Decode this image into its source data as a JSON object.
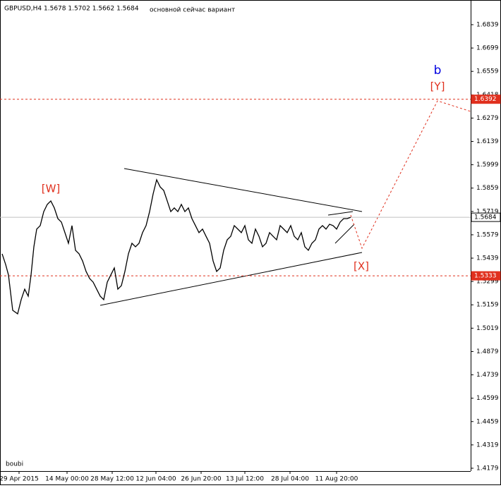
{
  "chart_data": {
    "type": "line",
    "title": "GBPUSD,H4  1.5678 1.5702 1.5662 1.5684",
    "subtitle": "основной сейчас вариант",
    "footer": "boubi",
    "annotations": {
      "w": "[W]",
      "x": "[X]",
      "y": "[Y]",
      "b": "b"
    },
    "series": [
      {
        "name": "GBPUSD",
        "color": "#000000",
        "x": [
          3,
          8,
          12,
          18,
          25,
          30,
          35,
          40,
          44,
          48,
          52,
          57,
          62,
          67,
          72,
          77,
          82,
          87,
          92,
          97,
          102,
          107,
          112,
          117,
          122,
          127,
          132,
          137,
          142,
          147,
          152,
          157,
          162,
          167,
          172,
          177,
          182,
          187,
          192,
          197,
          202,
          207,
          212,
          217,
          222,
          227,
          232,
          237,
          242,
          247,
          252,
          257,
          262,
          267,
          272,
          277,
          282,
          287,
          292,
          297,
          302,
          307,
          312,
          317,
          322,
          327,
          332,
          337,
          342,
          347,
          352,
          357,
          362,
          367,
          372,
          377,
          382,
          387,
          392,
          397,
          402,
          407,
          412,
          417,
          422,
          427,
          432,
          437,
          442,
          447,
          452,
          457,
          462,
          467,
          472,
          477,
          482,
          487,
          492,
          497
        ],
        "values": [
          1.5465,
          1.5401,
          1.5338,
          1.5126,
          1.5105,
          1.519,
          1.5253,
          1.5211,
          1.5338,
          1.5507,
          1.5613,
          1.5634,
          1.5718,
          1.5761,
          1.5782,
          1.574,
          1.5676,
          1.5655,
          1.5592,
          1.5528,
          1.5634,
          1.5486,
          1.5465,
          1.5422,
          1.5359,
          1.5317,
          1.5295,
          1.5253,
          1.5211,
          1.519,
          1.5295,
          1.5338,
          1.538,
          1.5253,
          1.5274,
          1.5359,
          1.5465,
          1.5528,
          1.5507,
          1.5528,
          1.5592,
          1.5634,
          1.5718,
          1.5824,
          1.5909,
          1.5866,
          1.5845,
          1.5782,
          1.5718,
          1.574,
          1.5718,
          1.5761,
          1.5718,
          1.574,
          1.5676,
          1.5634,
          1.5592,
          1.5613,
          1.557,
          1.5528,
          1.5422,
          1.5359,
          1.538,
          1.5486,
          1.5549,
          1.557,
          1.5634,
          1.5613,
          1.5592,
          1.5634,
          1.5549,
          1.5528,
          1.5613,
          1.557,
          1.5507,
          1.5528,
          1.5592,
          1.557,
          1.5549,
          1.5634,
          1.5613,
          1.5592,
          1.5634,
          1.557,
          1.5549,
          1.5592,
          1.5507,
          1.5486,
          1.5528,
          1.5549,
          1.5613,
          1.5634,
          1.5613,
          1.5642,
          1.5634,
          1.5613,
          1.5655,
          1.5676,
          1.5676,
          1.5684
        ]
      }
    ],
    "xlim": [
      0,
      667
    ],
    "xticks": [
      {
        "value": 27,
        "label": "29 Apr 2015"
      },
      {
        "value": 95,
        "label": "14 May 00:00"
      },
      {
        "value": 159,
        "label": "28 May 12:00"
      },
      {
        "value": 221,
        "label": "12 Jun 04:00"
      },
      {
        "value": 285,
        "label": "26 Jun 20:00"
      },
      {
        "value": 347,
        "label": "13 Jul 12:00"
      },
      {
        "value": 411,
        "label": "28 Jul 04:00"
      },
      {
        "value": 477,
        "label": "11 Aug 20:00"
      }
    ],
    "ylim": [
      1.4162,
      1.6987
    ],
    "yticks": [
      1.6839,
      1.6699,
      1.6559,
      1.6418,
      1.6279,
      1.6139,
      1.5999,
      1.5859,
      1.5719,
      1.5579,
      1.5439,
      1.5299,
      1.5159,
      1.5019,
      1.4879,
      1.4739,
      1.4599,
      1.4459,
      1.4319,
      1.4179
    ],
    "levels": [
      {
        "value": 1.6392,
        "color": "#e0301e"
      },
      {
        "value": 1.5684,
        "color": "#c0c0c0"
      },
      {
        "value": 1.5333,
        "color": "#e0301e"
      }
    ]
  }
}
